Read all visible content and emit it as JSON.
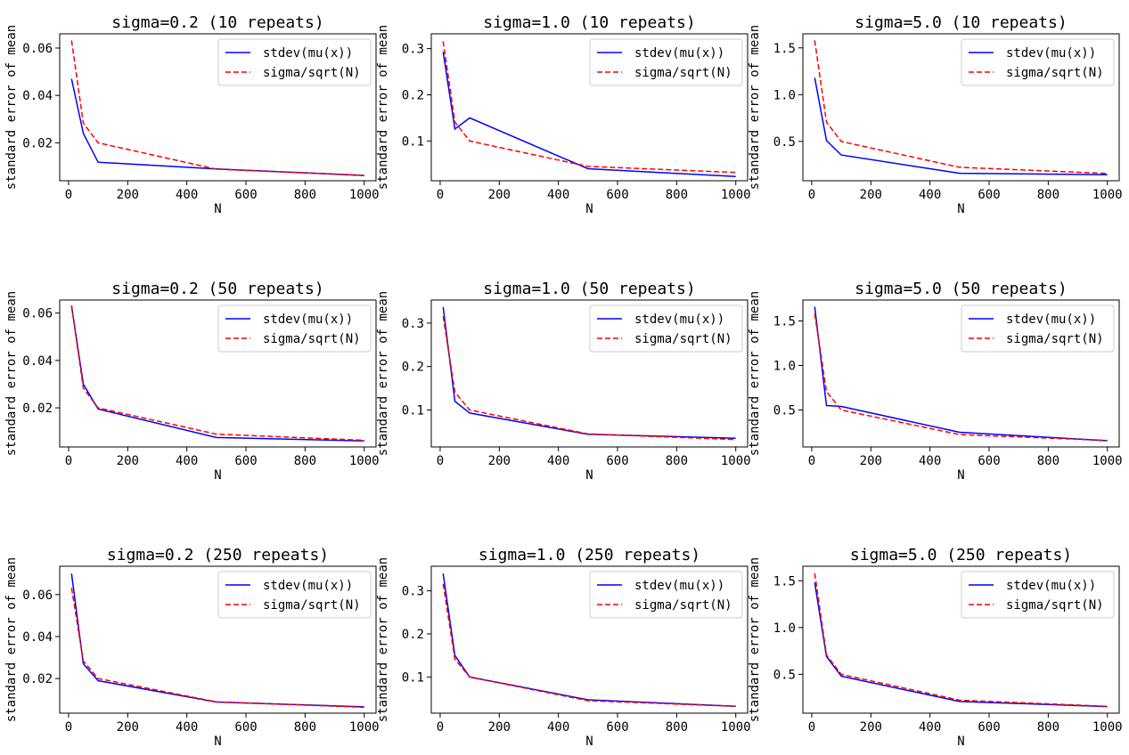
{
  "chart_data": [
    {
      "type": "line",
      "title": "sigma=0.2 (10 repeats)",
      "xlabel": "N",
      "ylabel": "standard error of mean",
      "x": [
        10,
        50,
        100,
        500,
        1000
      ],
      "xlim": [
        -30,
        1040
      ],
      "xticks": [
        0,
        200,
        400,
        600,
        800,
        1000
      ],
      "ylim": [
        0.004,
        0.066
      ],
      "yticks": [
        0.02,
        0.04,
        0.06
      ],
      "yticklabels": [
        "0.02",
        "0.04",
        "0.06"
      ],
      "legend_position": "top-right",
      "series": [
        {
          "name": "stdev(mu(x))",
          "color": "#0000ff",
          "dash": "solid",
          "values": [
            0.047,
            0.024,
            0.0118,
            0.009,
            0.0062
          ]
        },
        {
          "name": "sigma/sqrt(N)",
          "color": "#ff0000",
          "dash": "dashed",
          "values": [
            0.0632,
            0.0283,
            0.02,
            0.0089,
            0.0063
          ]
        }
      ]
    },
    {
      "type": "line",
      "title": "sigma=1.0 (10 repeats)",
      "xlabel": "N",
      "ylabel": "standard error of mean",
      "x": [
        10,
        50,
        100,
        500,
        1000
      ],
      "xlim": [
        -30,
        1040
      ],
      "xticks": [
        0,
        200,
        400,
        600,
        800,
        1000
      ],
      "ylim": [
        0.014,
        0.332
      ],
      "yticks": [
        0.1,
        0.2,
        0.3
      ],
      "yticklabels": [
        "0.1",
        "0.2",
        "0.3"
      ],
      "legend_position": "top-right",
      "series": [
        {
          "name": "stdev(mu(x))",
          "color": "#0000ff",
          "dash": "solid",
          "values": [
            0.293,
            0.126,
            0.15,
            0.04,
            0.023
          ]
        },
        {
          "name": "sigma/sqrt(N)",
          "color": "#ff0000",
          "dash": "dashed",
          "values": [
            0.316,
            0.141,
            0.1,
            0.045,
            0.032
          ]
        }
      ]
    },
    {
      "type": "line",
      "title": "sigma=5.0 (10 repeats)",
      "xlabel": "N",
      "ylabel": "standard error of mean",
      "x": [
        10,
        50,
        100,
        500,
        1000
      ],
      "xlim": [
        -30,
        1040
      ],
      "xticks": [
        0,
        200,
        400,
        600,
        800,
        1000
      ],
      "ylim": [
        0.08,
        1.65
      ],
      "yticks": [
        0.5,
        1.0,
        1.5
      ],
      "yticklabels": [
        "0.5",
        "1.0",
        "1.5"
      ],
      "legend_position": "top-right",
      "series": [
        {
          "name": "stdev(mu(x))",
          "color": "#0000ff",
          "dash": "solid",
          "values": [
            1.18,
            0.51,
            0.355,
            0.16,
            0.145
          ]
        },
        {
          "name": "sigma/sqrt(N)",
          "color": "#ff0000",
          "dash": "dashed",
          "values": [
            1.58,
            0.707,
            0.5,
            0.224,
            0.158
          ]
        }
      ]
    },
    {
      "type": "line",
      "title": "sigma=0.2 (50 repeats)",
      "xlabel": "N",
      "ylabel": "standard error of mean",
      "x": [
        10,
        50,
        100,
        500,
        1000
      ],
      "xlim": [
        -30,
        1040
      ],
      "xticks": [
        0,
        200,
        400,
        600,
        800,
        1000
      ],
      "ylim": [
        0.0035,
        0.0655
      ],
      "yticks": [
        0.02,
        0.04,
        0.06
      ],
      "yticklabels": [
        "0.02",
        "0.04",
        "0.06"
      ],
      "legend_position": "top-right",
      "series": [
        {
          "name": "stdev(mu(x))",
          "color": "#0000ff",
          "dash": "solid",
          "values": [
            0.063,
            0.03,
            0.0195,
            0.0075,
            0.006
          ]
        },
        {
          "name": "sigma/sqrt(N)",
          "color": "#ff0000",
          "dash": "dashed",
          "values": [
            0.0632,
            0.0283,
            0.02,
            0.0089,
            0.0063
          ]
        }
      ]
    },
    {
      "type": "line",
      "title": "sigma=1.0 (50 repeats)",
      "xlabel": "N",
      "ylabel": "standard error of mean",
      "x": [
        10,
        50,
        100,
        500,
        1000
      ],
      "xlim": [
        -30,
        1040
      ],
      "xticks": [
        0,
        200,
        400,
        600,
        800,
        1000
      ],
      "ylim": [
        0.015,
        0.353
      ],
      "yticks": [
        0.1,
        0.2,
        0.3
      ],
      "yticklabels": [
        "0.1",
        "0.2",
        "0.3"
      ],
      "legend_position": "top-right",
      "series": [
        {
          "name": "stdev(mu(x))",
          "color": "#0000ff",
          "dash": "solid",
          "values": [
            0.337,
            0.12,
            0.093,
            0.044,
            0.035
          ]
        },
        {
          "name": "sigma/sqrt(N)",
          "color": "#ff0000",
          "dash": "dashed",
          "values": [
            0.316,
            0.141,
            0.1,
            0.045,
            0.032
          ]
        }
      ]
    },
    {
      "type": "line",
      "title": "sigma=5.0 (50 repeats)",
      "xlabel": "N",
      "ylabel": "standard error of mean",
      "x": [
        10,
        50,
        100,
        500,
        1000
      ],
      "xlim": [
        -30,
        1040
      ],
      "xticks": [
        0,
        200,
        400,
        600,
        800,
        1000
      ],
      "ylim": [
        0.085,
        1.735
      ],
      "yticks": [
        0.5,
        1.0,
        1.5
      ],
      "yticklabels": [
        "0.5",
        "1.0",
        "1.5"
      ],
      "legend_position": "top-right",
      "series": [
        {
          "name": "stdev(mu(x))",
          "color": "#0000ff",
          "dash": "solid",
          "values": [
            1.66,
            0.55,
            0.54,
            0.25,
            0.155
          ]
        },
        {
          "name": "sigma/sqrt(N)",
          "color": "#ff0000",
          "dash": "dashed",
          "values": [
            1.58,
            0.707,
            0.5,
            0.224,
            0.158
          ]
        }
      ]
    },
    {
      "type": "line",
      "title": "sigma=0.2 (250 repeats)",
      "xlabel": "N",
      "ylabel": "standard error of mean",
      "x": [
        10,
        50,
        100,
        500,
        1000
      ],
      "xlim": [
        -30,
        1040
      ],
      "xticks": [
        0,
        200,
        400,
        600,
        800,
        1000
      ],
      "ylim": [
        0.0035,
        0.0735
      ],
      "yticks": [
        0.02,
        0.04,
        0.06
      ],
      "yticklabels": [
        "0.02",
        "0.04",
        "0.06"
      ],
      "legend_position": "top-right",
      "series": [
        {
          "name": "stdev(mu(x))",
          "color": "#0000ff",
          "dash": "solid",
          "values": [
            0.07,
            0.027,
            0.019,
            0.0088,
            0.0065
          ]
        },
        {
          "name": "sigma/sqrt(N)",
          "color": "#ff0000",
          "dash": "dashed",
          "values": [
            0.0632,
            0.0283,
            0.02,
            0.0089,
            0.0063
          ]
        }
      ]
    },
    {
      "type": "line",
      "title": "sigma=1.0 (250 repeats)",
      "xlabel": "N",
      "ylabel": "standard error of mean",
      "x": [
        10,
        50,
        100,
        500,
        1000
      ],
      "xlim": [
        -30,
        1040
      ],
      "xticks": [
        0,
        200,
        400,
        600,
        800,
        1000
      ],
      "ylim": [
        0.016,
        0.357
      ],
      "yticks": [
        0.1,
        0.2,
        0.3
      ],
      "yticklabels": [
        "0.1",
        "0.2",
        "0.3"
      ],
      "legend_position": "top-right",
      "series": [
        {
          "name": "stdev(mu(x))",
          "color": "#0000ff",
          "dash": "solid",
          "values": [
            0.34,
            0.15,
            0.1,
            0.047,
            0.032
          ]
        },
        {
          "name": "sigma/sqrt(N)",
          "color": "#ff0000",
          "dash": "dashed",
          "values": [
            0.316,
            0.141,
            0.1,
            0.045,
            0.032
          ]
        }
      ]
    },
    {
      "type": "line",
      "title": "sigma=5.0 (250 repeats)",
      "xlabel": "N",
      "ylabel": "standard error of mean",
      "x": [
        10,
        50,
        100,
        500,
        1000
      ],
      "xlim": [
        -30,
        1040
      ],
      "xticks": [
        0,
        200,
        400,
        600,
        800,
        1000
      ],
      "ylim": [
        0.085,
        1.655
      ],
      "yticks": [
        0.5,
        1.0,
        1.5
      ],
      "yticklabels": [
        "0.5",
        "1.0",
        "1.5"
      ],
      "legend_position": "top-right",
      "series": [
        {
          "name": "stdev(mu(x))",
          "color": "#0000ff",
          "dash": "solid",
          "values": [
            1.48,
            0.69,
            0.48,
            0.21,
            0.155
          ]
        },
        {
          "name": "sigma/sqrt(N)",
          "color": "#ff0000",
          "dash": "dashed",
          "values": [
            1.58,
            0.707,
            0.5,
            0.224,
            0.158
          ]
        }
      ]
    }
  ]
}
